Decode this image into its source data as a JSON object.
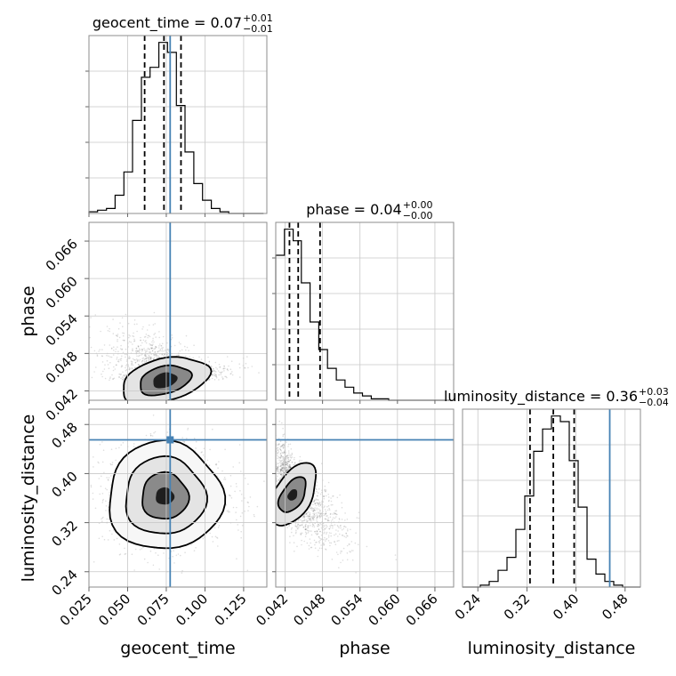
{
  "chart_data": {
    "type": "corner",
    "parameters": [
      "geocent_time",
      "phase",
      "luminosity_distance"
    ],
    "axis_labels": {
      "x": [
        "geocent_time",
        "phase",
        "luminosity_distance"
      ],
      "y": [
        "phase",
        "luminosity_distance"
      ]
    },
    "titles": [
      {
        "param": "geocent_time",
        "text": "geocent_time = 0.07",
        "plus": "+0.01",
        "minus": "−0.01"
      },
      {
        "param": "phase",
        "text": "phase = 0.04",
        "plus": "+0.00",
        "minus": "−0.00"
      },
      {
        "param": "luminosity_distance",
        "text": "luminosity_distance = 0.36",
        "plus": "+0.03",
        "minus": "−0.04"
      }
    ],
    "ranges": {
      "geocent_time": [
        0.025,
        0.14
      ],
      "phase": [
        0.0405,
        0.069
      ],
      "luminosity_distance": [
        0.215,
        0.505
      ]
    },
    "ticks": {
      "geocent_time": {
        "values": [
          0.025,
          0.05,
          0.075,
          0.1,
          0.125
        ],
        "labels": [
          "0.025",
          "0.050",
          "0.075",
          "0.100",
          "0.125"
        ]
      },
      "phase": {
        "values": [
          0.042,
          0.048,
          0.054,
          0.06,
          0.066
        ],
        "labels": [
          "0.042",
          "0.048",
          "0.054",
          "0.060",
          "0.066"
        ]
      },
      "luminosity_distance": {
        "values": [
          0.24,
          0.32,
          0.4,
          0.48
        ],
        "labels": [
          "0.24",
          "0.32",
          "0.40",
          "0.48"
        ]
      }
    },
    "truths": {
      "geocent_time": 0.0775,
      "phase": null,
      "luminosity_distance": 0.455
    },
    "quantiles": {
      "geocent_time": [
        0.061,
        0.0735,
        0.0845
      ],
      "phase": [
        0.0427,
        0.0441,
        0.0476
      ],
      "luminosity_distance": [
        0.325,
        0.363,
        0.397
      ]
    },
    "histograms": {
      "geocent_time": {
        "edges": [
          0.025,
          0.0306,
          0.0363,
          0.0419,
          0.0476,
          0.0532,
          0.0589,
          0.0645,
          0.0702,
          0.0758,
          0.0815,
          0.0871,
          0.0928,
          0.0984,
          0.1041,
          0.1097,
          0.1154,
          0.121,
          0.1266,
          0.1323,
          0.1379
        ],
        "counts": [
          1,
          2,
          3,
          11,
          25,
          56,
          82,
          88,
          103,
          97,
          65,
          37,
          18,
          8,
          3,
          1,
          0,
          0,
          0,
          0
        ]
      },
      "phase": {
        "edges": [
          0.0405,
          0.0419,
          0.0433,
          0.0446,
          0.046,
          0.0474,
          0.0488,
          0.0502,
          0.0516,
          0.053,
          0.0544,
          0.0558,
          0.0572,
          0.0586,
          0.0599,
          0.0613,
          0.0627,
          0.0641,
          0.0655,
          0.0669,
          0.0683
        ],
        "counts": [
          100,
          118,
          110,
          81,
          54,
          35,
          22,
          14,
          9,
          5,
          3,
          1,
          1,
          0,
          0,
          0,
          0,
          0,
          0,
          0
        ]
      },
      "luminosity_distance": {
        "edges": [
          0.215,
          0.2295,
          0.244,
          0.2585,
          0.273,
          0.2875,
          0.302,
          0.3165,
          0.331,
          0.3455,
          0.36,
          0.3745,
          0.389,
          0.4035,
          0.418,
          0.4325,
          0.447,
          0.4615,
          0.476,
          0.4905,
          0.505
        ],
        "counts": [
          0,
          0,
          1,
          3,
          9,
          16,
          31,
          49,
          73,
          85,
          92,
          89,
          68,
          43,
          15,
          7,
          3,
          1,
          0,
          0
        ]
      }
    },
    "contours": {
      "phase_vs_geocent_time": {
        "center": [
          0.074,
          0.0437
        ],
        "levels": [
          {
            "rx": 0.008,
            "ry": 0.0012,
            "fill": "#1e1e1e"
          },
          {
            "rx": 0.017,
            "ry": 0.0022,
            "fill": "#888888"
          },
          {
            "rx": 0.029,
            "ry": 0.0034,
            "fill": "#e4e4e4"
          }
        ],
        "tilt": -0.25
      },
      "luminosity_distance_vs_geocent_time": {
        "center": [
          0.074,
          0.363
        ],
        "levels": [
          {
            "rx": 0.006,
            "ry": 0.014,
            "fill": "#1e1e1e"
          },
          {
            "rx": 0.015,
            "ry": 0.038,
            "fill": "#8a8a8a"
          },
          {
            "rx": 0.026,
            "ry": 0.063,
            "fill": "#e4e4e4"
          },
          {
            "rx": 0.037,
            "ry": 0.088,
            "fill": "#f7f7f7"
          }
        ],
        "tilt": 0
      },
      "luminosity_distance_vs_phase": {
        "center": [
          0.0432,
          0.365
        ],
        "levels": [
          {
            "rx": 0.0007,
            "ry": 0.01,
            "fill": "#1e1e1e"
          },
          {
            "rx": 0.0017,
            "ry": 0.032,
            "fill": "#8a8a8a"
          },
          {
            "rx": 0.003,
            "ry": 0.057,
            "fill": "#e4e4e4"
          }
        ],
        "tilt": 0.55
      }
    }
  }
}
